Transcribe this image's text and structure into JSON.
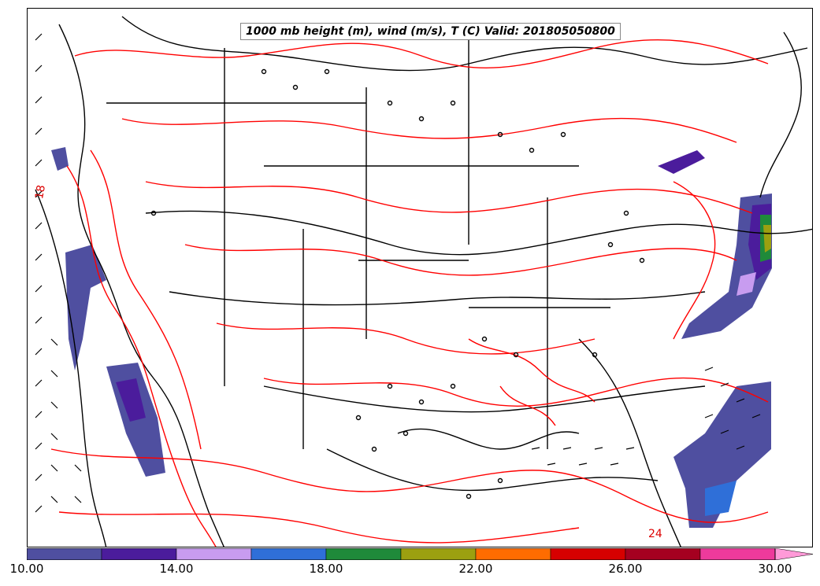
{
  "title": "1000 mb height (m), wind (m/s), T (C) Valid: 201805050800",
  "colorbar": {
    "colors": [
      "#4f4fa0",
      "#4b1c9c",
      "#c89cf0",
      "#2f6fd8",
      "#1f8a3a",
      "#9ca010",
      "#ff6c00",
      "#d60000",
      "#a50020",
      "#ee3a9c",
      "#ff9ad8"
    ],
    "labels": [
      "10.00",
      "14.00",
      "18.00",
      "22.00",
      "26.00",
      "30.00"
    ]
  },
  "contour_labels": [
    "18",
    "24"
  ],
  "colors": {
    "temperature_contour": "#ff0000",
    "height_contour": "#000000",
    "barb": "#000000"
  }
}
